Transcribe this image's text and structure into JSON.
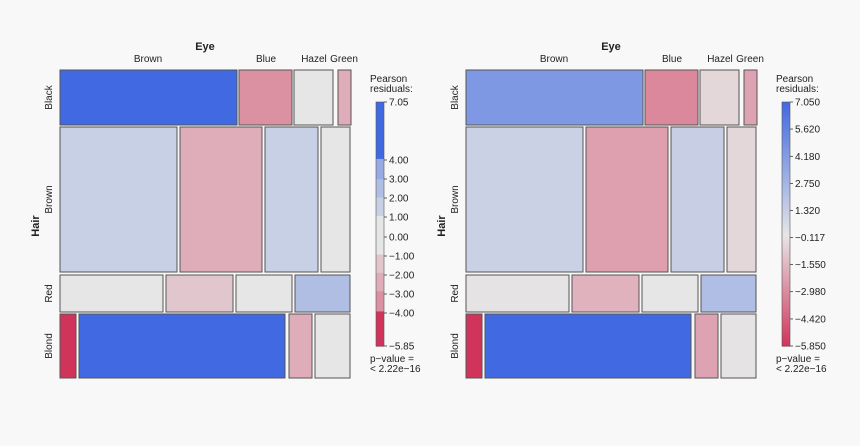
{
  "chart_data": [
    {
      "type": "mosaic",
      "row_variable": "Hair",
      "column_variable": "Eye",
      "rows": [
        "Black",
        "Brown",
        "Red",
        "Blond"
      ],
      "columns": [
        "Brown",
        "Blue",
        "Hazel",
        "Green"
      ],
      "legend_title": "Pearson\nresiduals:",
      "legend_ticks": [
        "7.05",
        "4.00",
        "3.00",
        "2.00",
        "1.00",
        "0.00",
        "−1.00",
        "−2.00",
        "−3.00",
        "−4.00",
        "−5.85"
      ],
      "legend_range": [
        -5.85,
        7.05
      ],
      "legend_scale": "shaded-intervals",
      "pvalue_text": "p−value =\n< 2.22e−16",
      "residuals": [
        [
          4.4,
          -3.1,
          -0.5,
          -2.2
        ],
        [
          1.2,
          -2.3,
          1.3,
          -0.5
        ],
        [
          -0.1,
          -1.7,
          0.0,
          2.3
        ],
        [
          -5.85,
          7.05,
          -2.2,
          -0.1
        ]
      ]
    },
    {
      "type": "mosaic",
      "row_variable": "Hair",
      "column_variable": "Eye",
      "rows": [
        "Black",
        "Brown",
        "Red",
        "Blond"
      ],
      "columns": [
        "Brown",
        "Blue",
        "Hazel",
        "Green"
      ],
      "legend_title": "Pearson\nresiduals:",
      "legend_ticks": [
        "7.050",
        "5.620",
        "4.180",
        "2.750",
        "1.320",
        "−0.117",
        "−1.550",
        "−2.980",
        "−4.420",
        "−5.850"
      ],
      "legend_range": [
        -5.85,
        7.05
      ],
      "legend_scale": "continuous",
      "pvalue_text": "p−value =\n< 2.22e−16",
      "residuals": [
        [
          4.4,
          -3.1,
          -0.5,
          -2.2
        ],
        [
          1.2,
          -2.3,
          1.3,
          -0.5
        ],
        [
          -0.1,
          -1.7,
          0.0,
          2.3
        ],
        [
          -5.85,
          7.05,
          -2.2,
          -0.1
        ]
      ]
    }
  ],
  "colors": {
    "positive": "#4169e1",
    "negative": "#d1345b",
    "neutral": "#e6e6e6",
    "border": "#555555",
    "text": "#222222",
    "background": "#f8f8f8"
  }
}
